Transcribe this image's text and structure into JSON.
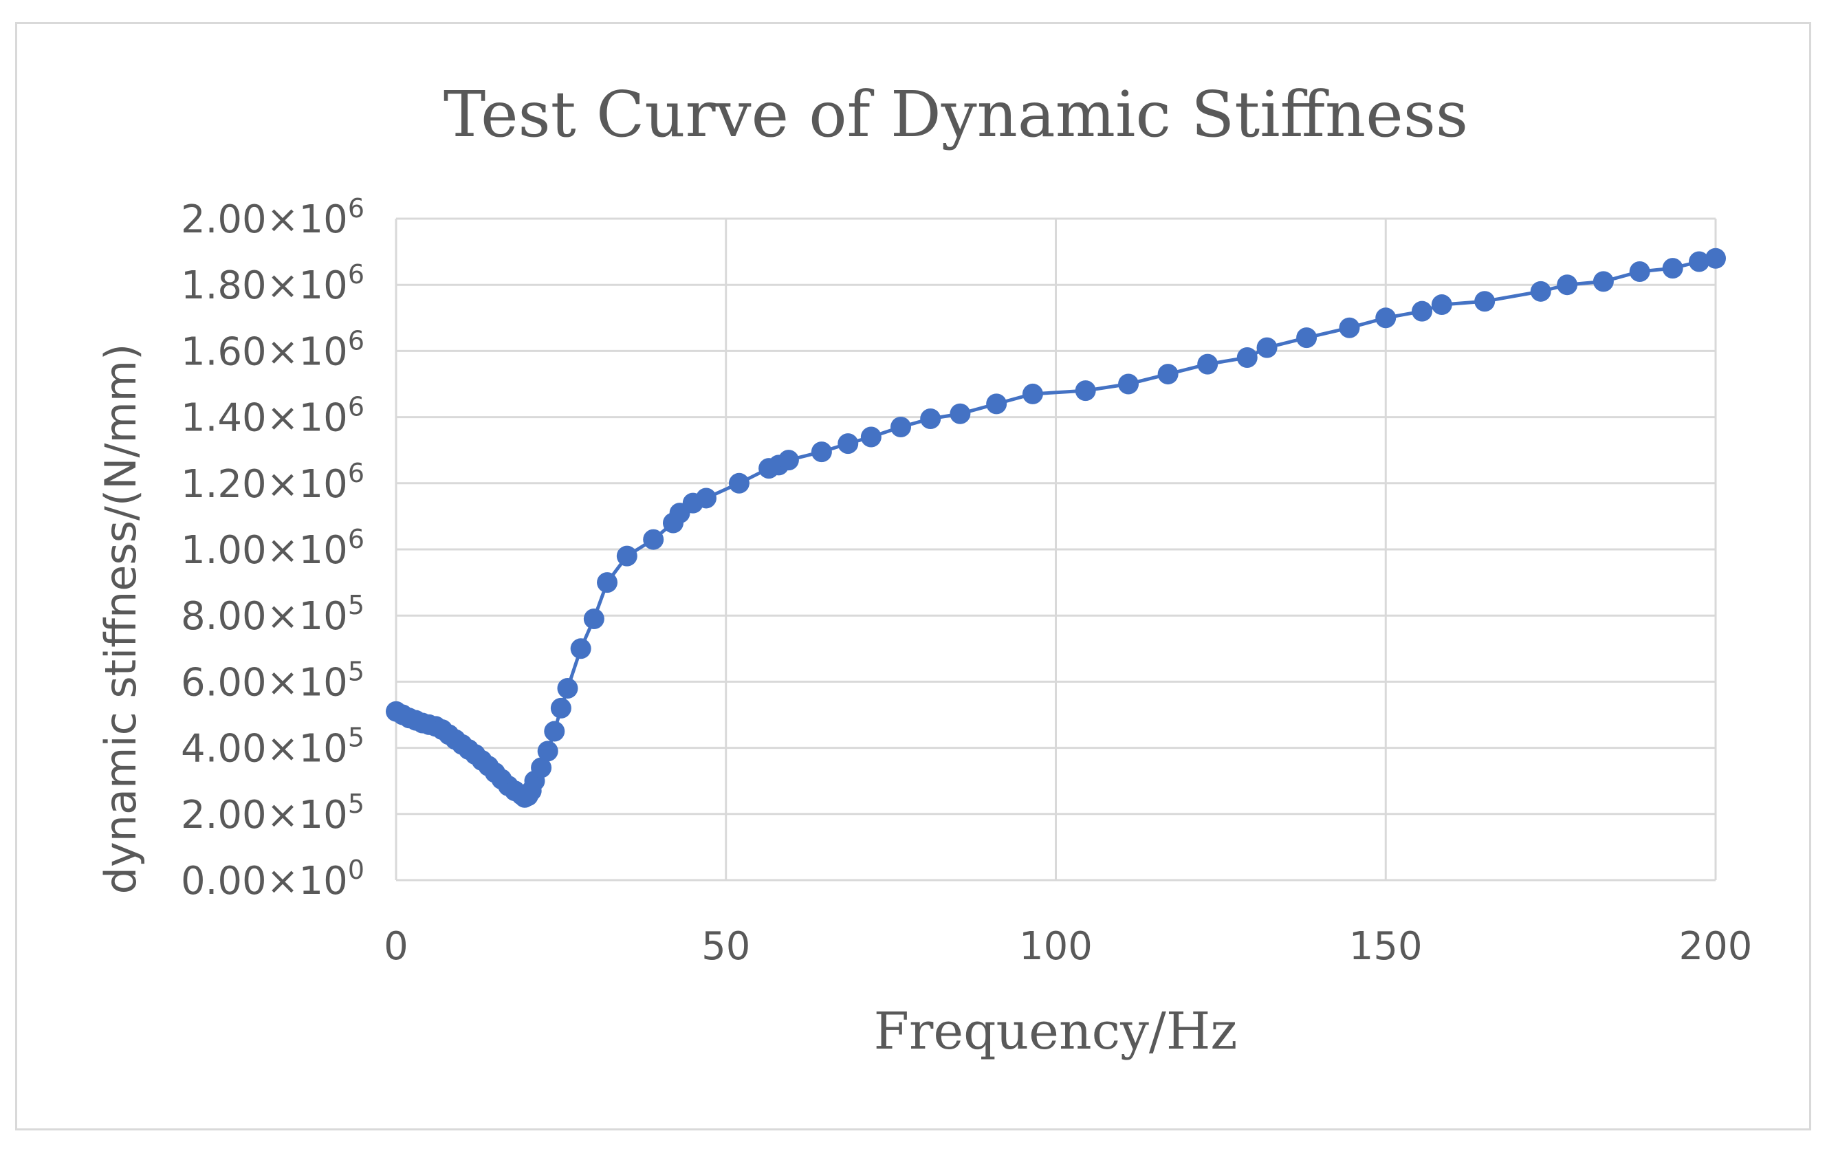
{
  "chart_data": {
    "type": "line",
    "title": "Test Curve of Dynamic Stiffness",
    "xlabel": "Frequency/Hz",
    "ylabel": "dynamic stiffness/(N/mm)",
    "xlim": [
      0,
      200
    ],
    "ylim": [
      0,
      2000000
    ],
    "grid": true,
    "x_ticks": [
      {
        "value": 0,
        "label": "0"
      },
      {
        "value": 50,
        "label": "50"
      },
      {
        "value": 100,
        "label": "100"
      },
      {
        "value": 150,
        "label": "150"
      },
      {
        "value": 200,
        "label": "200"
      }
    ],
    "y_ticks": [
      {
        "value": 0,
        "mantissa": "0.00",
        "exp": "0"
      },
      {
        "value": 200000,
        "mantissa": "2.00",
        "exp": "5"
      },
      {
        "value": 400000,
        "mantissa": "4.00",
        "exp": "5"
      },
      {
        "value": 600000,
        "mantissa": "6.00",
        "exp": "5"
      },
      {
        "value": 800000,
        "mantissa": "8.00",
        "exp": "5"
      },
      {
        "value": 1000000,
        "mantissa": "1.00",
        "exp": "6"
      },
      {
        "value": 1200000,
        "mantissa": "1.20",
        "exp": "6"
      },
      {
        "value": 1400000,
        "mantissa": "1.40",
        "exp": "6"
      },
      {
        "value": 1600000,
        "mantissa": "1.60",
        "exp": "6"
      },
      {
        "value": 1800000,
        "mantissa": "1.80",
        "exp": "6"
      },
      {
        "value": 2000000,
        "mantissa": "2.00",
        "exp": "6"
      }
    ],
    "series": [
      {
        "name": "dynamic stiffness",
        "color": "#4472c4",
        "x": [
          0,
          1,
          2,
          3,
          4,
          5,
          6,
          7,
          8,
          9,
          10,
          11,
          12,
          13,
          14,
          15,
          16,
          17,
          18,
          19,
          19.5,
          20,
          20.5,
          21,
          22,
          23,
          24,
          25,
          26,
          28,
          30,
          32,
          35,
          39,
          42,
          43,
          45,
          47,
          52,
          56.5,
          58,
          59.5,
          64.5,
          68.5,
          72,
          76.5,
          81,
          85.5,
          91,
          96.5,
          104.5,
          111,
          117,
          123,
          129,
          132,
          138,
          144.5,
          150,
          155.5,
          158.5,
          165,
          173.5,
          177.5,
          183,
          188.5,
          193.5,
          197.5,
          200
        ],
        "y": [
          510000,
          500000,
          490000,
          483000,
          475000,
          470000,
          465000,
          455000,
          440000,
          425000,
          410000,
          395000,
          380000,
          362000,
          345000,
          325000,
          305000,
          285000,
          270000,
          258000,
          250000,
          255000,
          270000,
          300000,
          340000,
          390000,
          450000,
          520000,
          580000,
          700000,
          790000,
          900000,
          980000,
          1030000,
          1080000,
          1110000,
          1140000,
          1155000,
          1200000,
          1245000,
          1255000,
          1270000,
          1295000,
          1320000,
          1340000,
          1370000,
          1395000,
          1410000,
          1440000,
          1470000,
          1480000,
          1500000,
          1530000,
          1560000,
          1580000,
          1610000,
          1640000,
          1670000,
          1700000,
          1720000,
          1740000,
          1750000,
          1780000,
          1800000,
          1810000,
          1840000,
          1850000,
          1870000,
          1880000
        ]
      }
    ]
  }
}
